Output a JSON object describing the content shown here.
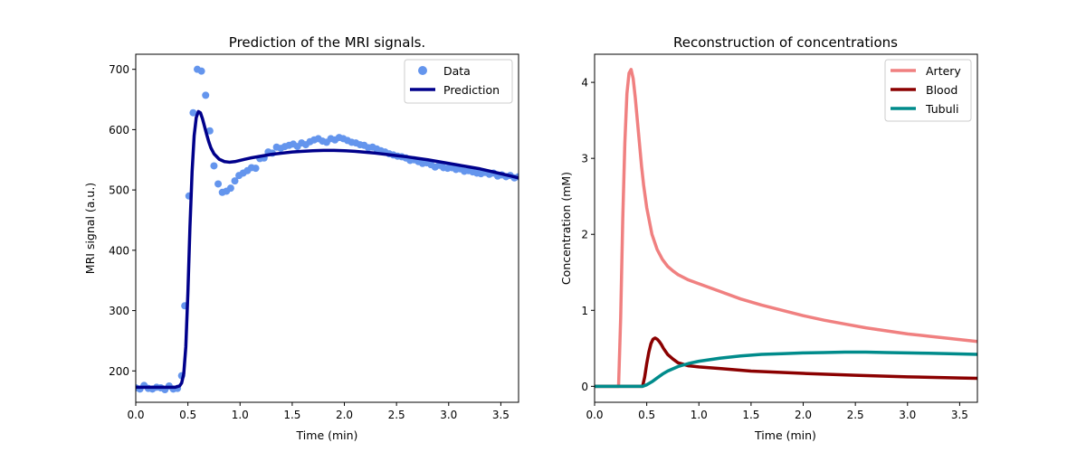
{
  "chart_data": [
    {
      "type": "line",
      "title": "Prediction of the MRI signals.",
      "xlabel": "Time (min)",
      "ylabel": "MRI signal (a.u.)",
      "xlim": [
        0,
        3.67
      ],
      "ylim": [
        148,
        725
      ],
      "xticks": [
        0.0,
        0.5,
        1.0,
        1.5,
        2.0,
        2.5,
        3.0,
        3.5
      ],
      "xtick_labels": [
        "0.0",
        "0.5",
        "1.0",
        "1.5",
        "2.0",
        "2.5",
        "3.0",
        "3.5"
      ],
      "yticks": [
        200,
        300,
        400,
        500,
        600,
        700
      ],
      "ytick_labels": [
        "200",
        "300",
        "400",
        "500",
        "600",
        "700"
      ],
      "legend_position": "top-right",
      "series": [
        {
          "name": "Data",
          "kind": "scatter",
          "color": "#6495ED",
          "x": [
            0.0,
            0.04,
            0.08,
            0.12,
            0.16,
            0.2,
            0.24,
            0.28,
            0.32,
            0.36,
            0.4,
            0.44,
            0.47,
            0.51,
            0.55,
            0.59,
            0.63,
            0.67,
            0.71,
            0.75,
            0.79,
            0.83,
            0.87,
            0.91,
            0.95,
            0.99,
            1.03,
            1.07,
            1.11,
            1.15,
            1.19,
            1.23,
            1.27,
            1.31,
            1.35,
            1.39,
            1.43,
            1.47,
            1.51,
            1.55,
            1.59,
            1.63,
            1.67,
            1.71,
            1.75,
            1.79,
            1.83,
            1.87,
            1.91,
            1.95,
            1.99,
            2.03,
            2.07,
            2.11,
            2.15,
            2.19,
            2.23,
            2.27,
            2.31,
            2.35,
            2.39,
            2.43,
            2.47,
            2.51,
            2.55,
            2.59,
            2.63,
            2.67,
            2.71,
            2.75,
            2.79,
            2.83,
            2.87,
            2.91,
            2.95,
            2.99,
            3.03,
            3.07,
            3.11,
            3.15,
            3.19,
            3.23,
            3.27,
            3.31,
            3.35,
            3.39,
            3.43,
            3.47,
            3.51,
            3.55,
            3.59,
            3.63,
            3.67
          ],
          "values": [
            172,
            170,
            176,
            171,
            170,
            173,
            172,
            169,
            175,
            170,
            171,
            192,
            308,
            490,
            628,
            700,
            697,
            657,
            598,
            540,
            510,
            496,
            498,
            503,
            515,
            524,
            528,
            532,
            537,
            536,
            552,
            553,
            563,
            561,
            571,
            569,
            572,
            574,
            576,
            572,
            578,
            575,
            580,
            583,
            585,
            581,
            579,
            585,
            583,
            587,
            585,
            582,
            579,
            578,
            575,
            574,
            570,
            571,
            568,
            565,
            563,
            560,
            558,
            556,
            555,
            553,
            549,
            550,
            547,
            544,
            545,
            542,
            538,
            541,
            537,
            536,
            537,
            534,
            535,
            531,
            532,
            530,
            528,
            527,
            529,
            526,
            528,
            523,
            525,
            522,
            524,
            520,
            522
          ]
        },
        {
          "name": "Prediction",
          "kind": "line",
          "color": "#00008B",
          "x": [
            0.0,
            0.38,
            0.42,
            0.44,
            0.46,
            0.48,
            0.5,
            0.52,
            0.54,
            0.56,
            0.58,
            0.6,
            0.62,
            0.64,
            0.66,
            0.68,
            0.7,
            0.72,
            0.75,
            0.8,
            0.85,
            0.9,
            0.95,
            1.0,
            1.05,
            1.1,
            1.2,
            1.3,
            1.4,
            1.5,
            1.6,
            1.7,
            1.8,
            1.9,
            2.0,
            2.1,
            2.2,
            2.3,
            2.4,
            2.5,
            2.6,
            2.7,
            2.8,
            2.9,
            3.0,
            3.1,
            3.2,
            3.3,
            3.4,
            3.5,
            3.6,
            3.67
          ],
          "values": [
            173,
            173,
            175,
            180,
            195,
            240,
            330,
            440,
            530,
            590,
            620,
            630,
            628,
            618,
            605,
            592,
            580,
            570,
            560,
            551,
            547,
            546,
            547,
            549,
            551,
            553,
            556,
            559,
            561,
            563,
            564,
            565,
            565.5,
            565.5,
            565,
            564,
            562.5,
            561,
            559,
            557,
            555,
            552.5,
            550,
            547,
            544,
            541,
            538,
            535,
            531,
            527,
            523,
            520
          ]
        }
      ]
    },
    {
      "type": "line",
      "title": "Reconstruction of concentrations",
      "xlabel": "Time (min)",
      "ylabel": "Concentration (mM)",
      "xlim": [
        0,
        3.67
      ],
      "ylim": [
        -0.21,
        4.37
      ],
      "xticks": [
        0.0,
        0.5,
        1.0,
        1.5,
        2.0,
        2.5,
        3.0,
        3.5
      ],
      "xtick_labels": [
        "0.0",
        "0.5",
        "1.0",
        "1.5",
        "2.0",
        "2.5",
        "3.0",
        "3.5"
      ],
      "yticks": [
        0,
        1,
        2,
        3,
        4
      ],
      "ytick_labels": [
        "0",
        "1",
        "2",
        "3",
        "4"
      ],
      "legend_position": "top-right",
      "series": [
        {
          "name": "Artery",
          "kind": "line",
          "color": "#F08080",
          "x": [
            0.0,
            0.23,
            0.25,
            0.27,
            0.29,
            0.31,
            0.33,
            0.35,
            0.37,
            0.39,
            0.41,
            0.43,
            0.45,
            0.47,
            0.5,
            0.55,
            0.6,
            0.65,
            0.7,
            0.75,
            0.8,
            0.9,
            1.0,
            1.2,
            1.4,
            1.6,
            1.8,
            2.0,
            2.2,
            2.4,
            2.6,
            2.8,
            3.0,
            3.2,
            3.4,
            3.67
          ],
          "values": [
            0,
            0,
            0.9,
            2.2,
            3.2,
            3.85,
            4.12,
            4.17,
            4.05,
            3.8,
            3.5,
            3.2,
            2.9,
            2.65,
            2.35,
            2.0,
            1.8,
            1.67,
            1.58,
            1.52,
            1.47,
            1.4,
            1.35,
            1.25,
            1.15,
            1.07,
            1.0,
            0.93,
            0.87,
            0.82,
            0.77,
            0.73,
            0.69,
            0.66,
            0.63,
            0.59
          ]
        },
        {
          "name": "Blood",
          "kind": "line",
          "color": "#8B0000",
          "x": [
            0.0,
            0.46,
            0.48,
            0.5,
            0.52,
            0.54,
            0.56,
            0.58,
            0.6,
            0.62,
            0.64,
            0.66,
            0.7,
            0.75,
            0.8,
            0.85,
            0.9,
            1.0,
            1.2,
            1.5,
            2.0,
            2.5,
            3.0,
            3.5,
            3.67
          ],
          "values": [
            0,
            0,
            0.12,
            0.3,
            0.45,
            0.56,
            0.62,
            0.635,
            0.62,
            0.59,
            0.55,
            0.5,
            0.42,
            0.36,
            0.31,
            0.29,
            0.27,
            0.255,
            0.235,
            0.2,
            0.17,
            0.145,
            0.125,
            0.11,
            0.105
          ]
        },
        {
          "name": "Tubuli",
          "kind": "line",
          "color": "#008B8B",
          "x": [
            0.0,
            0.46,
            0.5,
            0.55,
            0.6,
            0.65,
            0.7,
            0.75,
            0.8,
            0.9,
            1.0,
            1.2,
            1.4,
            1.6,
            1.8,
            2.0,
            2.2,
            2.4,
            2.6,
            2.8,
            3.0,
            3.2,
            3.4,
            3.67
          ],
          "values": [
            0,
            0,
            0.02,
            0.06,
            0.11,
            0.16,
            0.2,
            0.23,
            0.26,
            0.3,
            0.33,
            0.37,
            0.4,
            0.42,
            0.43,
            0.44,
            0.445,
            0.45,
            0.45,
            0.445,
            0.44,
            0.435,
            0.43,
            0.42
          ]
        }
      ]
    }
  ]
}
